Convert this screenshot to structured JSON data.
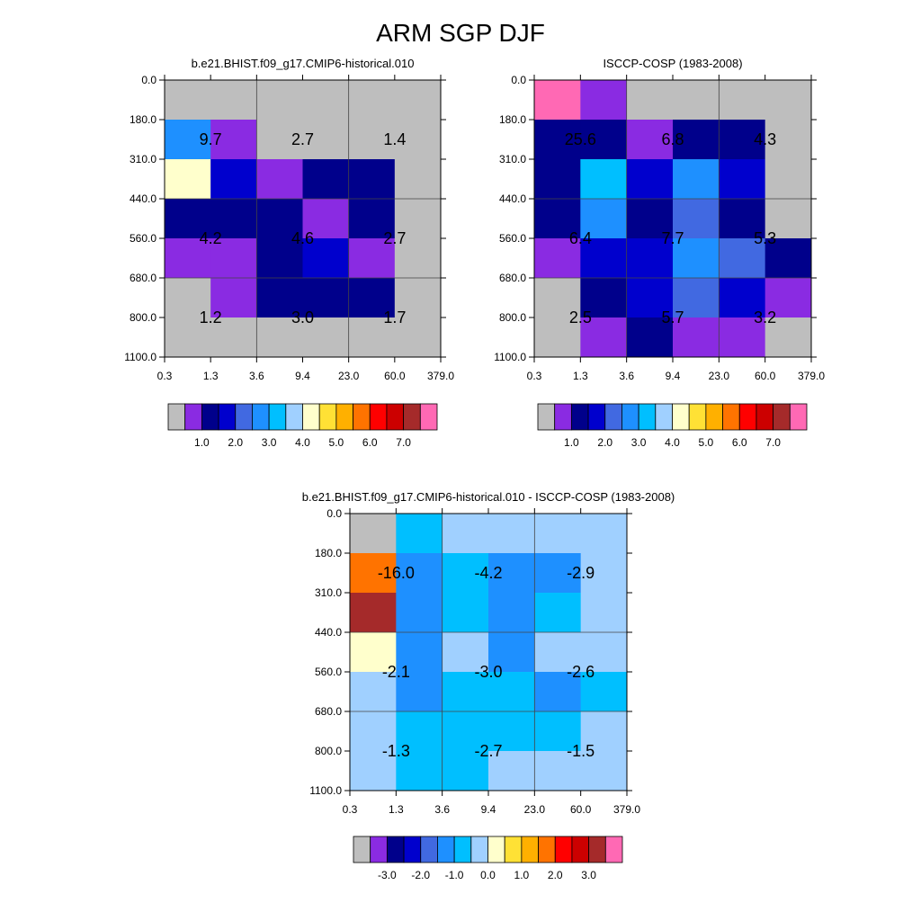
{
  "title": "ARM SGP DJF",
  "chart_data": [
    {
      "type": "heatmap",
      "title": "b.e21.BHIST.f09_g17.CMIP6-historical.010",
      "x_tick_labels": [
        "0.3",
        "1.3",
        "3.6",
        "9.4",
        "23.0",
        "60.0",
        "379.0"
      ],
      "y_tick_labels": [
        "0.0",
        "180.0",
        "310.0",
        "440.0",
        "560.0",
        "680.0",
        "800.0",
        "1100.0"
      ],
      "cell_colors": [
        [
          "#bebebe",
          "#bebebe",
          "#bebebe",
          "#bebebe",
          "#bebebe",
          "#bebebe"
        ],
        [
          "#1e90ff",
          "#8a2be2",
          "#bebebe",
          "#bebebe",
          "#bebebe",
          "#bebebe"
        ],
        [
          "#ffffcc",
          "#0000cd",
          "#8a2be2",
          "#00008b",
          "#00008b",
          "#bebebe"
        ],
        [
          "#00008b",
          "#00008b",
          "#00008b",
          "#8a2be2",
          "#00008b",
          "#bebebe"
        ],
        [
          "#8a2be2",
          "#8a2be2",
          "#00008b",
          "#0000cd",
          "#8a2be2",
          "#bebebe"
        ],
        [
          "#bebebe",
          "#8a2be2",
          "#00008b",
          "#00008b",
          "#00008b",
          "#bebebe"
        ],
        [
          "#bebebe",
          "#bebebe",
          "#bebebe",
          "#bebebe",
          "#bebebe",
          "#bebebe"
        ]
      ],
      "block_values": [
        [
          "9.7",
          "2.7",
          "1.4"
        ],
        [
          "4.2",
          "4.6",
          "2.7"
        ],
        [
          "1.2",
          "3.0",
          "1.7"
        ]
      ],
      "colorbar": {
        "colors": [
          "#bebebe",
          "#8a2be2",
          "#00008b",
          "#0000cd",
          "#4169e1",
          "#1e90ff",
          "#00bfff",
          "#a0d0ff",
          "#ffffcc",
          "#ffe135",
          "#ffb000",
          "#ff7300",
          "#ff0000",
          "#cc0000",
          "#a52a2a",
          "#ff69b4"
        ],
        "labels": [
          "1.0",
          "2.0",
          "3.0",
          "4.0",
          "5.0",
          "6.0",
          "7.0"
        ]
      }
    },
    {
      "type": "heatmap",
      "title": "ISCCP-COSP (1983-2008)",
      "x_tick_labels": [
        "0.3",
        "1.3",
        "3.6",
        "9.4",
        "23.0",
        "60.0",
        "379.0"
      ],
      "y_tick_labels": [
        "0.0",
        "180.0",
        "310.0",
        "440.0",
        "560.0",
        "680.0",
        "800.0",
        "1100.0"
      ],
      "cell_colors": [
        [
          "#ff69b4",
          "#8a2be2",
          "#bebebe",
          "#bebebe",
          "#bebebe",
          "#bebebe"
        ],
        [
          "#00008b",
          "#00008b",
          "#8a2be2",
          "#00008b",
          "#00008b",
          "#bebebe"
        ],
        [
          "#00008b",
          "#00bfff",
          "#0000cd",
          "#1e90ff",
          "#0000cd",
          "#bebebe"
        ],
        [
          "#00008b",
          "#1e90ff",
          "#00008b",
          "#4169e1",
          "#00008b",
          "#bebebe"
        ],
        [
          "#8a2be2",
          "#0000cd",
          "#0000cd",
          "#1e90ff",
          "#4169e1",
          "#00008b"
        ],
        [
          "#bebebe",
          "#00008b",
          "#0000cd",
          "#4169e1",
          "#0000cd",
          "#8a2be2"
        ],
        [
          "#bebebe",
          "#8a2be2",
          "#00008b",
          "#8a2be2",
          "#8a2be2",
          "#bebebe"
        ]
      ],
      "block_values": [
        [
          "25.6",
          "6.8",
          "4.3"
        ],
        [
          "6.4",
          "7.7",
          "5.3"
        ],
        [
          "2.5",
          "5.7",
          "3.2"
        ]
      ],
      "colorbar": {
        "colors": [
          "#bebebe",
          "#8a2be2",
          "#00008b",
          "#0000cd",
          "#4169e1",
          "#1e90ff",
          "#00bfff",
          "#a0d0ff",
          "#ffffcc",
          "#ffe135",
          "#ffb000",
          "#ff7300",
          "#ff0000",
          "#cc0000",
          "#a52a2a",
          "#ff69b4"
        ],
        "labels": [
          "1.0",
          "2.0",
          "3.0",
          "4.0",
          "5.0",
          "6.0",
          "7.0"
        ]
      }
    },
    {
      "type": "heatmap",
      "title": "b.e21.BHIST.f09_g17.CMIP6-historical.010 - ISCCP-COSP (1983-2008)",
      "x_tick_labels": [
        "0.3",
        "1.3",
        "3.6",
        "9.4",
        "23.0",
        "60.0",
        "379.0"
      ],
      "y_tick_labels": [
        "0.0",
        "180.0",
        "310.0",
        "440.0",
        "560.0",
        "680.0",
        "800.0",
        "1100.0"
      ],
      "cell_colors": [
        [
          "#bebebe",
          "#00bfff",
          "#a0d0ff",
          "#a0d0ff",
          "#a0d0ff",
          "#a0d0ff"
        ],
        [
          "#ff7300",
          "#1e90ff",
          "#00bfff",
          "#1e90ff",
          "#1e90ff",
          "#a0d0ff"
        ],
        [
          "#a52a2a",
          "#1e90ff",
          "#00bfff",
          "#1e90ff",
          "#00bfff",
          "#a0d0ff"
        ],
        [
          "#ffffcc",
          "#1e90ff",
          "#a0d0ff",
          "#1e90ff",
          "#a0d0ff",
          "#a0d0ff"
        ],
        [
          "#a0d0ff",
          "#1e90ff",
          "#00bfff",
          "#00bfff",
          "#1e90ff",
          "#00bfff"
        ],
        [
          "#a0d0ff",
          "#00bfff",
          "#00bfff",
          "#00bfff",
          "#00bfff",
          "#a0d0ff"
        ],
        [
          "#a0d0ff",
          "#00bfff",
          "#00bfff",
          "#a0d0ff",
          "#a0d0ff",
          "#a0d0ff"
        ]
      ],
      "block_values": [
        [
          "-16.0",
          "-4.2",
          "-2.9"
        ],
        [
          "-2.1",
          "-3.0",
          "-2.6"
        ],
        [
          "-1.3",
          "-2.7",
          "-1.5"
        ]
      ],
      "colorbar": {
        "colors": [
          "#bebebe",
          "#8a2be2",
          "#00008b",
          "#0000cd",
          "#4169e1",
          "#1e90ff",
          "#00bfff",
          "#a0d0ff",
          "#ffffcc",
          "#ffe135",
          "#ffb000",
          "#ff7300",
          "#ff0000",
          "#cc0000",
          "#a52a2a",
          "#ff69b4"
        ],
        "labels": [
          "-3.0",
          "-2.0",
          "-1.0",
          "0.0",
          "1.0",
          "2.0",
          "3.0"
        ]
      }
    }
  ]
}
